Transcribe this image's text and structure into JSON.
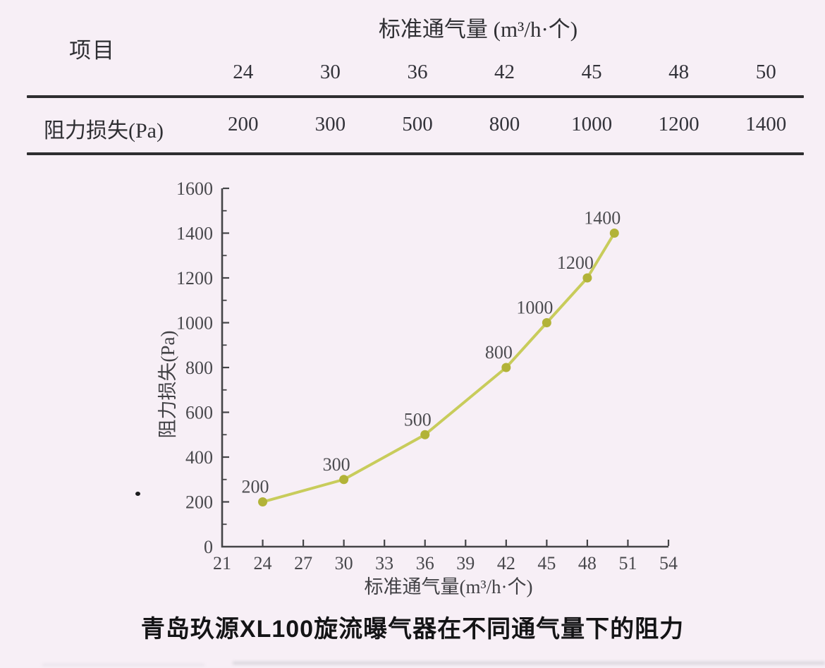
{
  "page": {
    "background": "#f7eff6",
    "caption": "青岛玖源XL100旋流曝气器在不同通气量下的阻力"
  },
  "table": {
    "item_header": "项目",
    "group_header": "标准通气量 (m³/h·个)",
    "row_header": "阻力损失(Pa)",
    "flow_values": [
      "24",
      "30",
      "36",
      "42",
      "45",
      "48",
      "50"
    ],
    "loss_values": [
      "200",
      "300",
      "500",
      "800",
      "1000",
      "1200",
      "1400"
    ]
  },
  "chart_data": {
    "type": "line",
    "title": "",
    "x": [
      24,
      30,
      36,
      42,
      45,
      48,
      50
    ],
    "y": [
      200,
      300,
      500,
      800,
      1000,
      1200,
      1400
    ],
    "point_labels": [
      "200",
      "300",
      "500",
      "800",
      "1000",
      "1200",
      "1400"
    ],
    "xlabel": "标准通气量(m³/h·个)",
    "ylabel": "阻力损失(Pa)",
    "xlim": [
      21,
      54
    ],
    "ylim": [
      0,
      1600
    ],
    "x_ticks": [
      21,
      24,
      27,
      30,
      33,
      36,
      39,
      42,
      45,
      48,
      51,
      54
    ],
    "y_major_ticks": [
      0,
      200,
      400,
      600,
      800,
      1000,
      1200,
      1400,
      1600
    ],
    "y_minor_step": 100,
    "grid": false,
    "legend_position": "none",
    "line_color": "#c8cc5b",
    "marker_color": "#b2b338",
    "axis_color": "#454548"
  }
}
